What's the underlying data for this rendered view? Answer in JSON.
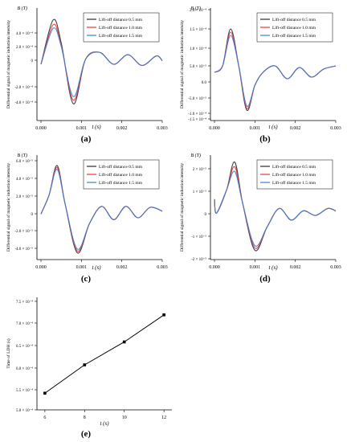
{
  "panels": [
    {
      "id": "a",
      "panel_label": "(a)",
      "ylabel_main": "Differential signal of magnetic induction intensity",
      "ylabel_unit": "B (T)",
      "xlabel": "t (s)",
      "x_ticks": [
        "0.000",
        "0.001",
        "0.002",
        "0.003"
      ],
      "y_ticks": [
        "4.0 × 10⁻⁴",
        "2.0 × 10⁻⁴",
        "0",
        "-2.0 × 10⁻⁴",
        "-4.0 × 10⁻⁴"
      ]
    },
    {
      "id": "b",
      "panel_label": "(b)",
      "ylabel_main": "Differential signal of magnetic induction intensity",
      "ylabel_unit": "B (T)",
      "xlabel": "t (s)",
      "x_ticks": [
        "0.000",
        "0.001",
        "0.002",
        "0.003"
      ],
      "y_ticks": [
        "2.0 × 10⁻⁴",
        "1.5 × 10⁻⁴",
        "1.0 × 10⁻⁴",
        "5.0 × 10⁻⁵",
        "0.0",
        "-5.0 × 10⁻⁵",
        "-1.0 × 10⁻⁴",
        "-1.5 × 10⁻⁴"
      ]
    },
    {
      "id": "c",
      "panel_label": "(c)",
      "ylabel_main": "Differential signal of magnetic induction intensity",
      "ylabel_unit": "B (T)",
      "xlabel": "t (s)",
      "x_ticks": [
        "0.000",
        "0.001",
        "0.002",
        "0.003"
      ],
      "y_ticks": [
        "6.0 × 10⁻⁵",
        "4.0 × 10⁻⁵",
        "2.0 × 10⁻⁵",
        "0",
        "-2.0 × 10⁻⁵",
        "-4.0 × 10⁻⁵"
      ]
    },
    {
      "id": "d",
      "panel_label": "(d)",
      "ylabel_main": "Differential signal of magnetic induction intensity",
      "ylabel_unit": "B (T)",
      "xlabel": "t (s)",
      "x_ticks": [
        "0.000",
        "0.001",
        "0.002",
        "0.003"
      ],
      "y_ticks": [
        "2 × 10⁻⁵",
        "1 × 10⁻⁵",
        "0",
        "-1 × 10⁻⁵",
        "-2 × 10⁻⁵"
      ]
    },
    {
      "id": "e",
      "panel_label": "(e)",
      "ylabel_main": "Time of LDH (s)",
      "xlabel": "t (s)",
      "x_ticks": [
        "6",
        "8",
        "10",
        "12"
      ],
      "y_ticks": [
        "7.5 × 10⁻⁴",
        "7.0 × 10⁻⁴",
        "6.5 × 10⁻⁴",
        "6.0 × 10⁻⁴",
        "5.5 × 10⁻⁴",
        "5.0 × 10⁻⁴"
      ]
    }
  ],
  "legend_entries": [
    "Lift-off distance 0.5 mm",
    "Lift-off distance 1.0 mm",
    "Lift-off distance 1.5 mm"
  ],
  "colors": {
    "series_0_5": "#2b2b2b",
    "series_1_0": "#e8343a",
    "series_1_5": "#3a7fd8",
    "axis": "#000000"
  },
  "chart_data": [
    {
      "type": "line",
      "panel": "a",
      "xlim": [
        -0.0001,
        0.003
      ],
      "ylim": [
        -0.00047,
        0.00047
      ],
      "legend_position": "top-right",
      "grid": false,
      "series": [
        {
          "name": "Lift-off distance 0.5 mm",
          "x": [
            0,
            0.0003,
            0.0005,
            0.0008,
            0.0011,
            0.00145,
            0.0018,
            0.00215,
            0.0025,
            0.00285,
            0.003
          ],
          "y": [
            0,
            0.00037,
            0.00018,
            -0.00033,
            4e-05,
            0.0001,
            0.0,
            8e-05,
            -1e-05,
            7e-05,
            3e-05
          ]
        },
        {
          "name": "Lift-off distance 1.0 mm",
          "x": [
            0,
            0.0003,
            0.0005,
            0.0008,
            0.0011,
            0.00145,
            0.0018,
            0.00215,
            0.0025,
            0.00285,
            0.003
          ],
          "y": [
            0,
            0.00033,
            0.00016,
            -0.0003,
            4e-05,
            0.0001,
            0.0,
            8e-05,
            -1e-05,
            7e-05,
            3e-05
          ]
        },
        {
          "name": "Lift-off distance 1.5 mm",
          "x": [
            0,
            0.0003,
            0.0005,
            0.0008,
            0.0011,
            0.00145,
            0.0018,
            0.00215,
            0.0025,
            0.00285,
            0.003
          ],
          "y": [
            0,
            0.0003,
            0.00015,
            -0.00027,
            4e-05,
            0.0001,
            0.0,
            8e-05,
            -1e-05,
            7e-05,
            3e-05
          ]
        }
      ]
    },
    {
      "type": "line",
      "panel": "b",
      "xlim": [
        -0.0001,
        0.003
      ],
      "ylim": [
        -0.00015,
        0.0002
      ],
      "legend_position": "top-right",
      "grid": false,
      "series": [
        {
          "name": "Lift-off distance 0.5 mm",
          "x": [
            0,
            0.0002,
            0.0004,
            0.0006,
            0.0008,
            0.001,
            0.0012,
            0.0015,
            0.0018,
            0.0021,
            0.0024,
            0.0027,
            0.003
          ],
          "y": [
            0,
            2e-05,
            0.000135,
            2e-05,
            -0.000118,
            -4e-05,
            0.0,
            2e-05,
            -2e-05,
            1.5e-05,
            -1.5e-05,
            1e-05,
            2e-05
          ]
        },
        {
          "name": "Lift-off distance 1.0 mm",
          "x": [
            0,
            0.0002,
            0.0004,
            0.0006,
            0.0008,
            0.001,
            0.0012,
            0.0015,
            0.0018,
            0.0021,
            0.0024,
            0.0027,
            0.003
          ],
          "y": [
            0,
            2e-05,
            0.000125,
            2e-05,
            -0.000112,
            -4e-05,
            0.0,
            2e-05,
            -2e-05,
            1.5e-05,
            -1.5e-05,
            1e-05,
            2e-05
          ]
        },
        {
          "name": "Lift-off distance 1.5 mm",
          "x": [
            0,
            0.0002,
            0.0004,
            0.0006,
            0.0008,
            0.001,
            0.0012,
            0.0015,
            0.0018,
            0.0021,
            0.0024,
            0.0027,
            0.003
          ],
          "y": [
            0,
            2e-05,
            0.000115,
            2e-05,
            -0.000105,
            -4e-05,
            0.0,
            2e-05,
            -2e-05,
            1.5e-05,
            -1.5e-05,
            1e-05,
            2e-05
          ]
        }
      ]
    },
    {
      "type": "line",
      "panel": "c",
      "xlim": [
        -0.0001,
        0.003
      ],
      "ylim": [
        -4.8e-05,
        6.2e-05
      ],
      "legend_position": "top-right",
      "grid": false,
      "series": [
        {
          "name": "Lift-off distance 0.5 mm",
          "x": [
            0,
            0.0002,
            0.0004,
            0.0006,
            0.0009,
            0.0012,
            0.0015,
            0.0018,
            0.0021,
            0.0024,
            0.0027,
            0.003
          ],
          "y": [
            0,
            2e-05,
            5.1e-05,
            1e-05,
            -4.1e-05,
            -1e-05,
            8e-06,
            -6e-06,
            8e-06,
            -4e-06,
            7e-06,
            3e-06
          ]
        },
        {
          "name": "Lift-off distance 1.0 mm",
          "x": [
            0,
            0.0002,
            0.0004,
            0.0006,
            0.0009,
            0.0012,
            0.0015,
            0.0018,
            0.0021,
            0.0024,
            0.0027,
            0.003
          ],
          "y": [
            0,
            2e-05,
            4.9e-05,
            1e-05,
            -3.9e-05,
            -1e-05,
            8e-06,
            -6e-06,
            8e-06,
            -4e-06,
            7e-06,
            3e-06
          ]
        },
        {
          "name": "Lift-off distance 1.5 mm",
          "x": [
            0,
            0.0002,
            0.0004,
            0.0006,
            0.0009,
            0.0012,
            0.0015,
            0.0018,
            0.0021,
            0.0024,
            0.0027,
            0.003
          ],
          "y": [
            0,
            2e-05,
            4.7e-05,
            1e-05,
            -3.7e-05,
            -1e-05,
            8e-06,
            -6e-06,
            8e-06,
            -4e-06,
            7e-06,
            3e-06
          ]
        }
      ]
    },
    {
      "type": "line",
      "panel": "d",
      "xlim": [
        -0.0001,
        0.003
      ],
      "ylim": [
        -2e-05,
        2.5e-05
      ],
      "legend_position": "top-right",
      "grid": false,
      "series": [
        {
          "name": "Lift-off distance 0.5 mm",
          "x": [
            0,
            5e-05,
            0.0003,
            0.0005,
            0.0007,
            0.001,
            0.0013,
            0.0016,
            0.0019,
            0.0022,
            0.0025,
            0.0028,
            0.003
          ],
          "y": [
            6e-06,
            0.0,
            1e-05,
            2.2e-05,
            4e-06,
            -1.6e-05,
            -6e-06,
            2e-06,
            -3e-06,
            1e-06,
            -1e-06,
            2e-06,
            1e-06
          ]
        },
        {
          "name": "Lift-off distance 1.0 mm",
          "x": [
            0,
            5e-05,
            0.0003,
            0.0005,
            0.0007,
            0.001,
            0.0013,
            0.0016,
            0.0019,
            0.0022,
            0.0025,
            0.0028,
            0.003
          ],
          "y": [
            6e-06,
            0.0,
            1e-05,
            2e-05,
            4e-06,
            -1.5e-05,
            -6e-06,
            2e-06,
            -3e-06,
            1e-06,
            -1e-06,
            2e-06,
            1e-06
          ]
        },
        {
          "name": "Lift-off distance 1.5 mm",
          "x": [
            0,
            5e-05,
            0.0003,
            0.0005,
            0.0007,
            0.001,
            0.0013,
            0.0016,
            0.0019,
            0.0022,
            0.0025,
            0.0028,
            0.003
          ],
          "y": [
            6e-06,
            0.0,
            1e-05,
            1.8e-05,
            4e-06,
            -1.4e-05,
            -6e-06,
            2e-06,
            -3e-06,
            1e-06,
            -1e-06,
            2e-06,
            1e-06
          ]
        }
      ]
    },
    {
      "type": "line",
      "panel": "e",
      "xlim": [
        5.6,
        12.4
      ],
      "ylim": [
        0.0005,
        0.00077
      ],
      "legend_position": "none",
      "grid": false,
      "series": [
        {
          "x": [
            6,
            8,
            10,
            12
          ],
          "y": [
            0.00054,
            0.000608,
            0.000663,
            0.000728
          ]
        }
      ]
    }
  ]
}
